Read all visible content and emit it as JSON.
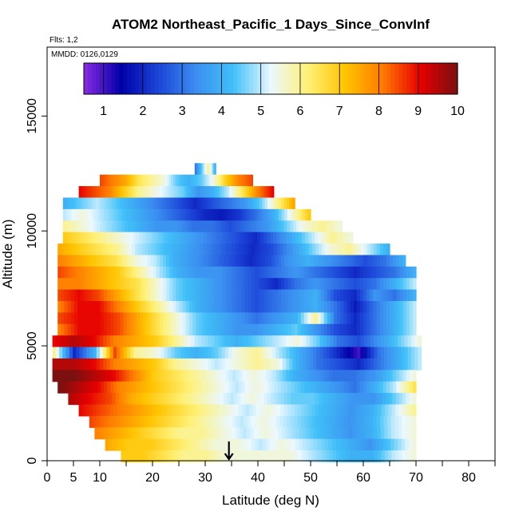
{
  "chart_data": {
    "type": "heatmap",
    "title": "ATOM2 Northeast_Pacific_1 Days_Since_ConvInf",
    "flights_label": "Flts: 1,2",
    "dates_label": "MMDD: 0126,0129",
    "xlabel": "Latitude (deg N)",
    "ylabel": "Altitude (m)",
    "xlim": [
      0,
      85
    ],
    "ylim": [
      0,
      18000
    ],
    "x_ticks": [
      0,
      5,
      10,
      20,
      30,
      40,
      50,
      60,
      70,
      80
    ],
    "x_minor_ticks": [
      15,
      25,
      35,
      45,
      55,
      65,
      75,
      85
    ],
    "y_ticks": [
      0,
      5000,
      10000,
      15000
    ],
    "colorbar": {
      "min": 0.5,
      "max": 10,
      "ticks": [
        1,
        2,
        3,
        4,
        5,
        6,
        7,
        8,
        9,
        10
      ],
      "colors": [
        "#8a2be2",
        "#0000a8",
        "#1c46d8",
        "#3b8ef0",
        "#40c0f8",
        "#eaf8ff",
        "#fff176",
        "#ffc400",
        "#ff7a00",
        "#e60000",
        "#7a1010"
      ]
    },
    "marker": {
      "type": "arrow",
      "x": 34.5,
      "y_from": 700,
      "y_to": 0
    },
    "rows": [
      {
        "alt": 12700,
        "x_range": [
          28,
          32
        ],
        "values": [
          3,
          4.5,
          6,
          4
        ]
      },
      {
        "alt": 12200,
        "x_range": [
          10,
          39
        ],
        "values": [
          8.5,
          8,
          7.5,
          6.5,
          6,
          5.5,
          4.5,
          4,
          4.5,
          5.5,
          7,
          8,
          8.5
        ]
      },
      {
        "alt": 11700,
        "x_range": [
          6,
          43
        ],
        "values": [
          9,
          8.5,
          8,
          7,
          6,
          5.5,
          5,
          4.5,
          3.5,
          4,
          5,
          6.5,
          8,
          9
        ]
      },
      {
        "alt": 11200,
        "x_range": [
          3,
          47
        ],
        "values": [
          4,
          4.5,
          5,
          4.5,
          4,
          3.5,
          3,
          2.5,
          2,
          2.5,
          3,
          3.5,
          4.5,
          6,
          7.5
        ]
      },
      {
        "alt": 10700,
        "x_range": [
          3,
          50
        ],
        "values": [
          5,
          5.5,
          5,
          4.5,
          4,
          3.5,
          3,
          2.5,
          2,
          1.8,
          2.2,
          3,
          4,
          5.5,
          7
        ]
      },
      {
        "alt": 10200,
        "x_range": [
          3,
          56
        ],
        "values": [
          6,
          5.5,
          5,
          4.5,
          4,
          3.5,
          3.5,
          3,
          3,
          2.5,
          3,
          3.5,
          4.5,
          5.5,
          6,
          5.5
        ]
      },
      {
        "alt": 9700,
        "x_range": [
          3,
          58
        ],
        "values": [
          7,
          6.5,
          6,
          5.5,
          5,
          4.5,
          4,
          3.5,
          3,
          2.5,
          2,
          3,
          4,
          5,
          6,
          5.5
        ]
      },
      {
        "alt": 9200,
        "x_range": [
          2,
          65
        ],
        "values": [
          7.5,
          7,
          6.5,
          6,
          5,
          4.5,
          4,
          3.5,
          3,
          2.5,
          2,
          2.5,
          3.5,
          4.5,
          5.5,
          6,
          5,
          4
        ]
      },
      {
        "alt": 8700,
        "x_range": [
          2,
          68
        ],
        "values": [
          8,
          7.5,
          7,
          6.5,
          5.5,
          5,
          4,
          3.5,
          3,
          2.5,
          2,
          2.5,
          3.5,
          4,
          3.5,
          3,
          2.5,
          3,
          4
        ]
      },
      {
        "alt": 8200,
        "x_range": [
          2,
          70
        ],
        "values": [
          8.5,
          8,
          7.5,
          7,
          6,
          5,
          4,
          3.5,
          3.5,
          3,
          2.5,
          3,
          3.5,
          3,
          2.5,
          2,
          2.5,
          3,
          4
        ]
      },
      {
        "alt": 7700,
        "x_range": [
          2,
          70
        ],
        "values": [
          8,
          8,
          7.5,
          7,
          6.5,
          5.5,
          4.5,
          4,
          3.5,
          3,
          2.5,
          2,
          3,
          3.5,
          3,
          2.5,
          3,
          4,
          5
        ]
      },
      {
        "alt": 7200,
        "x_range": [
          2,
          70
        ],
        "values": [
          8.5,
          9,
          8.5,
          7.5,
          6.5,
          5.5,
          4.5,
          4,
          3.5,
          3,
          2.5,
          3,
          3.5,
          4,
          2.5,
          2,
          3.5,
          3,
          4
        ]
      },
      {
        "alt": 6700,
        "x_range": [
          2,
          70
        ],
        "values": [
          8,
          9,
          9,
          8,
          7,
          6,
          5,
          4,
          3.5,
          3,
          2.5,
          3,
          3.5,
          4,
          3,
          1.8,
          3,
          4,
          5
        ]
      },
      {
        "alt": 6200,
        "x_range": [
          2,
          70
        ],
        "values": [
          8.5,
          9,
          9,
          8.5,
          7.5,
          6.5,
          5.5,
          4.5,
          4,
          3.5,
          3,
          3.5,
          4,
          6,
          3,
          2,
          3,
          4,
          5
        ]
      },
      {
        "alt": 5700,
        "x_range": [
          2,
          70
        ],
        "values": [
          8,
          9,
          9,
          8.5,
          7.5,
          6.5,
          5.5,
          4.5,
          4,
          3.5,
          3.5,
          4,
          4.5,
          3.5,
          2.5,
          2,
          3,
          4,
          5
        ]
      },
      {
        "alt": 5200,
        "x_range": [
          1,
          71
        ],
        "values": [
          9,
          9.5,
          9,
          8,
          7.5,
          7,
          6,
          5,
          4.5,
          4,
          4.5,
          5,
          5.5,
          4.5,
          3,
          2.5,
          3.5,
          4.5,
          5.5
        ]
      },
      {
        "alt": 4700,
        "x_range": [
          1,
          71
        ],
        "values": [
          6,
          2,
          4,
          8.5,
          6,
          5.5,
          4.5,
          4,
          4.5,
          5.5,
          6,
          5,
          4,
          3,
          2,
          1,
          3,
          4,
          5
        ]
      },
      {
        "alt": 4200,
        "x_range": [
          1,
          71
        ],
        "values": [
          9.5,
          9.5,
          9,
          8,
          7.5,
          7,
          6,
          5.5,
          5,
          5.5,
          6,
          5.5,
          4,
          3,
          2.5,
          2,
          3,
          4,
          5
        ]
      },
      {
        "alt": 3700,
        "x_range": [
          1,
          70
        ],
        "values": [
          10,
          10,
          9.5,
          9,
          8,
          7,
          6.5,
          6,
          5.5,
          5,
          5.5,
          5,
          4,
          3.5,
          3,
          3,
          3.5,
          4.5,
          5.5
        ]
      },
      {
        "alt": 3200,
        "x_range": [
          2,
          70
        ],
        "values": [
          10,
          9.5,
          9,
          8,
          7.5,
          7,
          6.5,
          6,
          5.5,
          5,
          5.5,
          5,
          4.5,
          4,
          3.5,
          3,
          4,
          5,
          6.5
        ]
      },
      {
        "alt": 2700,
        "x_range": [
          4,
          70
        ],
        "values": [
          9.5,
          9,
          8.5,
          7.5,
          7,
          6.5,
          6,
          5.5,
          5,
          5.5,
          5,
          4.5,
          4.5,
          4,
          3.5,
          3.5,
          4.5,
          5.5
        ]
      },
      {
        "alt": 2200,
        "x_range": [
          6,
          70
        ],
        "values": [
          9,
          8.5,
          8,
          7.5,
          7,
          6.5,
          6,
          5.5,
          5,
          5.5,
          5,
          4.5,
          4,
          3.5,
          4,
          5,
          6
        ]
      },
      {
        "alt": 1700,
        "x_range": [
          8,
          70
        ],
        "values": [
          8.5,
          8,
          7.5,
          7,
          6.5,
          6,
          5.5,
          5,
          5.5,
          5,
          4.5,
          4,
          3.5,
          4,
          5,
          5.5
        ]
      },
      {
        "alt": 1200,
        "x_range": [
          9,
          70
        ],
        "values": [
          8,
          7.5,
          7,
          6.5,
          6,
          6,
          5.5,
          5,
          5.5,
          5,
          4.5,
          4,
          3.5,
          4,
          5,
          5.5
        ]
      },
      {
        "alt": 700,
        "x_range": [
          11,
          70
        ],
        "values": [
          7.5,
          7,
          7,
          6.5,
          6,
          5.5,
          5.5,
          5,
          5.5,
          5,
          4.5,
          4,
          3.5,
          4.5,
          5.5
        ]
      },
      {
        "alt": 200,
        "x_range": [
          14,
          70
        ],
        "values": [
          7,
          7,
          6.5,
          6,
          6,
          5.5,
          5.5,
          5.5,
          5.5,
          5,
          4.5,
          4,
          4,
          5,
          5.5
        ]
      }
    ]
  }
}
